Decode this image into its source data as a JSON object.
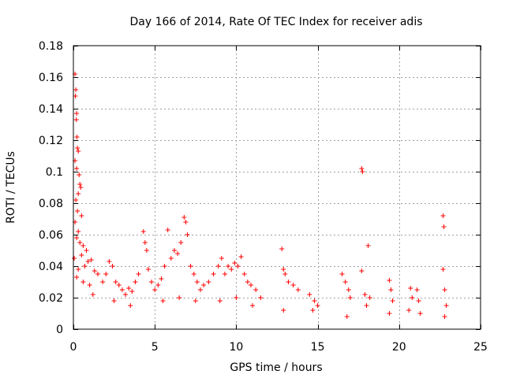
{
  "chart_data": {
    "type": "scatter",
    "title": "Day 166 of 2014, Rate Of TEC Index for receiver adis",
    "xlabel": "GPS time / hours",
    "ylabel": "ROTI / TECUs",
    "xlim": [
      0,
      25
    ],
    "ylim": [
      0,
      0.18
    ],
    "xticks": [
      0,
      5,
      10,
      15,
      20,
      25
    ],
    "xtick_labels": [
      "0",
      "5",
      "10",
      "15",
      "20",
      "25"
    ],
    "yticks": [
      0,
      0.02,
      0.04,
      0.06,
      0.08,
      0.1,
      0.12,
      0.14,
      0.16,
      0.18
    ],
    "ytick_labels": [
      "0",
      "0.02",
      "0.04",
      "0.06",
      "0.08",
      "0.1",
      "0.12",
      "0.14",
      "0.16",
      "0.18"
    ],
    "grid": true,
    "marker": "plus",
    "color": "#ff0000",
    "series": [
      {
        "name": "ROTI",
        "points": [
          [
            0.1,
            0.162
          ],
          [
            0.15,
            0.152
          ],
          [
            0.12,
            0.148
          ],
          [
            0.2,
            0.137
          ],
          [
            0.18,
            0.133
          ],
          [
            0.22,
            0.122
          ],
          [
            0.25,
            0.115
          ],
          [
            0.3,
            0.113
          ],
          [
            0.1,
            0.107
          ],
          [
            0.2,
            0.102
          ],
          [
            0.35,
            0.098
          ],
          [
            0.4,
            0.092
          ],
          [
            0.45,
            0.09
          ],
          [
            0.3,
            0.086
          ],
          [
            0.15,
            0.082
          ],
          [
            0.25,
            0.075
          ],
          [
            0.5,
            0.072
          ],
          [
            0.1,
            0.068
          ],
          [
            0.3,
            0.062
          ],
          [
            0.2,
            0.058
          ],
          [
            0.4,
            0.055
          ],
          [
            0.6,
            0.053
          ],
          [
            0.8,
            0.05
          ],
          [
            0.5,
            0.047
          ],
          [
            0.05,
            0.045
          ],
          [
            0.9,
            0.043
          ],
          [
            1.1,
            0.044
          ],
          [
            0.7,
            0.04
          ],
          [
            0.3,
            0.038
          ],
          [
            1.3,
            0.037
          ],
          [
            1.5,
            0.035
          ],
          [
            0.2,
            0.033
          ],
          [
            0.6,
            0.03
          ],
          [
            1.0,
            0.028
          ],
          [
            1.8,
            0.03
          ],
          [
            2.0,
            0.035
          ],
          [
            2.2,
            0.043
          ],
          [
            2.4,
            0.04
          ],
          [
            2.6,
            0.03
          ],
          [
            2.8,
            0.028
          ],
          [
            3.0,
            0.025
          ],
          [
            3.2,
            0.022
          ],
          [
            3.4,
            0.026
          ],
          [
            3.6,
            0.024
          ],
          [
            3.8,
            0.03
          ],
          [
            4.0,
            0.035
          ],
          [
            4.3,
            0.062
          ],
          [
            4.4,
            0.055
          ],
          [
            4.5,
            0.05
          ],
          [
            4.6,
            0.038
          ],
          [
            4.8,
            0.03
          ],
          [
            5.0,
            0.025
          ],
          [
            5.2,
            0.028
          ],
          [
            5.4,
            0.032
          ],
          [
            5.6,
            0.04
          ],
          [
            5.8,
            0.063
          ],
          [
            6.0,
            0.045
          ],
          [
            6.2,
            0.05
          ],
          [
            6.4,
            0.048
          ],
          [
            6.6,
            0.055
          ],
          [
            6.8,
            0.071
          ],
          [
            6.9,
            0.068
          ],
          [
            7.0,
            0.06
          ],
          [
            7.2,
            0.04
          ],
          [
            7.4,
            0.035
          ],
          [
            7.6,
            0.03
          ],
          [
            7.8,
            0.025
          ],
          [
            8.0,
            0.028
          ],
          [
            8.3,
            0.03
          ],
          [
            8.6,
            0.035
          ],
          [
            8.9,
            0.04
          ],
          [
            9.1,
            0.045
          ],
          [
            9.3,
            0.035
          ],
          [
            9.5,
            0.04
          ],
          [
            9.7,
            0.038
          ],
          [
            9.9,
            0.042
          ],
          [
            10.1,
            0.04
          ],
          [
            10.3,
            0.046
          ],
          [
            10.5,
            0.035
          ],
          [
            10.7,
            0.03
          ],
          [
            10.9,
            0.028
          ],
          [
            11.2,
            0.025
          ],
          [
            11.5,
            0.02
          ],
          [
            12.8,
            0.051
          ],
          [
            12.9,
            0.038
          ],
          [
            13.0,
            0.035
          ],
          [
            13.2,
            0.03
          ],
          [
            13.5,
            0.028
          ],
          [
            13.8,
            0.025
          ],
          [
            14.5,
            0.022
          ],
          [
            14.8,
            0.018
          ],
          [
            15.0,
            0.015
          ],
          [
            16.5,
            0.035
          ],
          [
            16.7,
            0.03
          ],
          [
            16.9,
            0.025
          ],
          [
            17.0,
            0.02
          ],
          [
            17.7,
            0.102
          ],
          [
            17.75,
            0.1
          ],
          [
            17.7,
            0.037
          ],
          [
            17.9,
            0.022
          ],
          [
            18.1,
            0.053
          ],
          [
            18.2,
            0.02
          ],
          [
            19.4,
            0.031
          ],
          [
            19.5,
            0.025
          ],
          [
            19.6,
            0.018
          ],
          [
            20.7,
            0.026
          ],
          [
            20.8,
            0.02
          ],
          [
            21.1,
            0.025
          ],
          [
            21.2,
            0.018
          ],
          [
            22.7,
            0.072
          ],
          [
            22.75,
            0.065
          ],
          [
            22.7,
            0.038
          ],
          [
            22.8,
            0.025
          ],
          [
            22.9,
            0.015
          ],
          [
            1.2,
            0.022
          ],
          [
            2.5,
            0.018
          ],
          [
            3.5,
            0.015
          ],
          [
            5.5,
            0.018
          ],
          [
            6.5,
            0.02
          ],
          [
            7.5,
            0.018
          ],
          [
            9.0,
            0.018
          ],
          [
            10.0,
            0.02
          ],
          [
            11.0,
            0.015
          ],
          [
            12.9,
            0.012
          ],
          [
            14.7,
            0.012
          ],
          [
            16.8,
            0.008
          ],
          [
            18.0,
            0.015
          ],
          [
            19.4,
            0.01
          ],
          [
            20.6,
            0.012
          ],
          [
            21.3,
            0.01
          ],
          [
            22.8,
            0.008
          ]
        ]
      }
    ]
  }
}
